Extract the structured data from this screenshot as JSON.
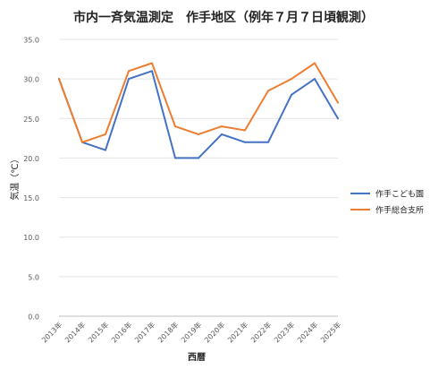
{
  "chart_data": {
    "type": "line",
    "title": "市内一斉気温測定　作手地区（例年７月７日頃観測）",
    "xlabel": "西暦",
    "ylabel": "気温（℃）",
    "categories": [
      "2013年",
      "2014年",
      "2015年",
      "2016年",
      "2017年",
      "2018年",
      "2019年",
      "2020年",
      "2021年",
      "2022年",
      "2023年",
      "2024年",
      "2025年"
    ],
    "ylim": [
      0,
      35
    ],
    "ytick_labels": [
      "0.0",
      "5.0",
      "10.0",
      "15.0",
      "20.0",
      "25.0",
      "30.0",
      "35.0"
    ],
    "grid": "horizontal",
    "legend_position": "right",
    "series": [
      {
        "name": "作手こども園",
        "color": "#4472C4",
        "values": [
          30,
          22,
          21,
          30,
          31,
          20,
          20,
          23,
          22,
          22,
          28,
          30,
          25
        ]
      },
      {
        "name": "作手総合支所",
        "color": "#ED7D31",
        "values": [
          30,
          22,
          23,
          31,
          32,
          24,
          23,
          24,
          23.5,
          28.5,
          30,
          32,
          27
        ]
      }
    ]
  }
}
